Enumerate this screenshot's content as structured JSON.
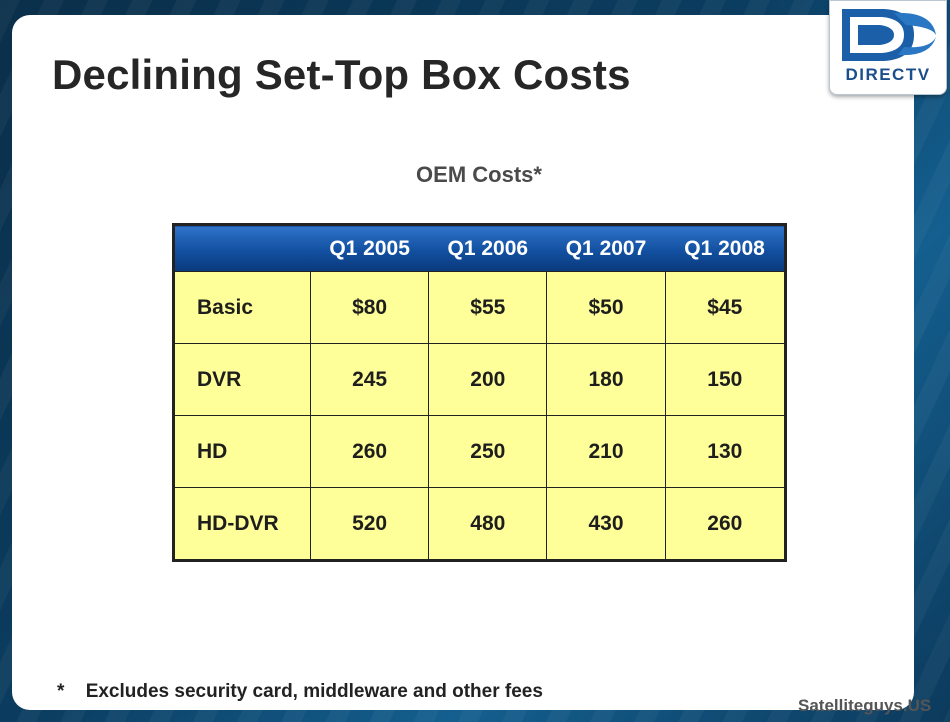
{
  "title": "Declining Set-Top Box Costs",
  "logo": {
    "text": "DIRECTV",
    "icon": "directv-cyclone-logo",
    "color": "#1b4f8c"
  },
  "subtitle": "OEM Costs*",
  "table": {
    "columns": [
      "",
      "Q1 2005",
      "Q1 2006",
      "Q1 2007",
      "Q1 2008"
    ],
    "rows": [
      {
        "label": "Basic",
        "values": [
          "$80",
          "$55",
          "$50",
          "$45"
        ]
      },
      {
        "label": "DVR",
        "values": [
          "245",
          "200",
          "180",
          "150"
        ]
      },
      {
        "label": "HD",
        "values": [
          "260",
          "250",
          "210",
          "130"
        ]
      },
      {
        "label": "HD-DVR",
        "values": [
          "520",
          "480",
          "430",
          "260"
        ]
      }
    ],
    "header_color": "#124fa0",
    "cell_color": "#ffff99"
  },
  "footnote": {
    "star": "*",
    "text": "Excludes security card, middleware and other fees"
  },
  "watermark": "Satelliteguys.US"
}
